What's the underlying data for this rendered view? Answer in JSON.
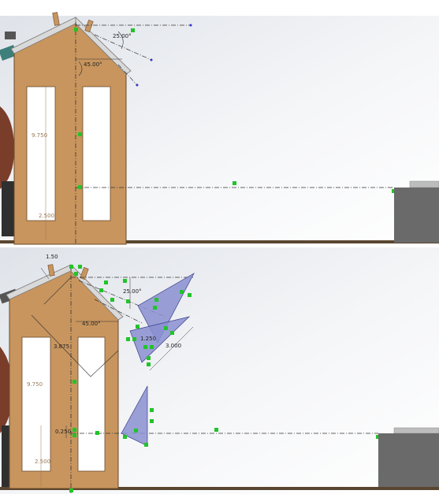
{
  "viewports": [
    {
      "name": "top",
      "dimensions": {
        "angle_roof": "25.00°",
        "angle_mid": "45.00°",
        "height_left": "9.750",
        "height_bottom": "2.500"
      }
    },
    {
      "name": "bottom",
      "dimensions": {
        "small_top": "1.50",
        "angle_roof": "25.00°",
        "angle_mid": "45.00°",
        "left_slant": "3.875",
        "wedge_a": "1.250",
        "wedge_b": "3.000",
        "height_left": "9.750",
        "small_mid": "0.250",
        "height_bottom": "2.500"
      }
    }
  ],
  "colors": {
    "wood": "#c8955e",
    "wood_edge": "#6b4a2a",
    "ground": "#5a4630",
    "block": "#6a6a6a",
    "marker": "#22c32a",
    "sketch_fill": "#8a8fd0",
    "centerline": "#333333"
  }
}
